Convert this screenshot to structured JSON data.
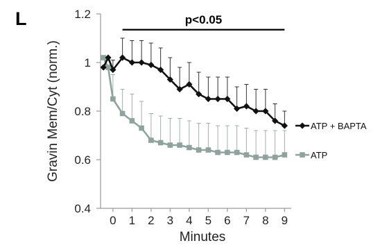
{
  "chart_data": {
    "type": "line",
    "panel_label": "L",
    "ylabel": "Gravin Mem/Cyt (norm.)",
    "xlabel": "Minutes",
    "ylim": [
      0.4,
      1.2
    ],
    "yticks": [
      "0.4",
      "0.6",
      "0.8",
      "1",
      "1.2"
    ],
    "xticks": [
      "0",
      "1",
      "2",
      "3",
      "4",
      "5",
      "6",
      "7",
      "8",
      "9"
    ],
    "significance": {
      "label": "p<0.05",
      "x_start": 0.5,
      "x_end": 9
    },
    "x": [
      -0.5,
      -0.25,
      0,
      0.5,
      1,
      1.5,
      2,
      2.5,
      3,
      3.5,
      4,
      4.5,
      5,
      5.5,
      6,
      6.5,
      7,
      7.5,
      8,
      8.5,
      9
    ],
    "series": [
      {
        "name": "ATP + BAPTA",
        "color": "#111111",
        "marker": "diamond",
        "values": [
          0.98,
          1.02,
          0.97,
          1.02,
          1.0,
          1.0,
          0.99,
          0.97,
          0.93,
          0.89,
          0.91,
          0.87,
          0.85,
          0.85,
          0.85,
          0.81,
          0.82,
          0.8,
          0.8,
          0.76,
          0.74
        ],
        "err": [
          0.0,
          0.0,
          0.04,
          0.08,
          0.09,
          0.09,
          0.09,
          0.09,
          0.09,
          0.09,
          0.09,
          0.09,
          0.09,
          0.09,
          0.09,
          0.09,
          0.09,
          0.09,
          0.09,
          0.07,
          0.06
        ]
      },
      {
        "name": "ATP",
        "color": "#8fa39e",
        "marker": "square",
        "values": [
          1.02,
          0.98,
          0.85,
          0.79,
          0.76,
          0.73,
          0.68,
          0.67,
          0.66,
          0.66,
          0.65,
          0.64,
          0.64,
          0.63,
          0.63,
          0.63,
          0.62,
          0.61,
          0.61,
          0.61,
          0.62
        ],
        "err": [
          0.0,
          0.0,
          0.1,
          0.1,
          0.11,
          0.11,
          0.11,
          0.11,
          0.11,
          0.11,
          0.11,
          0.11,
          0.11,
          0.11,
          0.11,
          0.11,
          0.11,
          0.11,
          0.11,
          0.11,
          0.1
        ]
      }
    ]
  }
}
